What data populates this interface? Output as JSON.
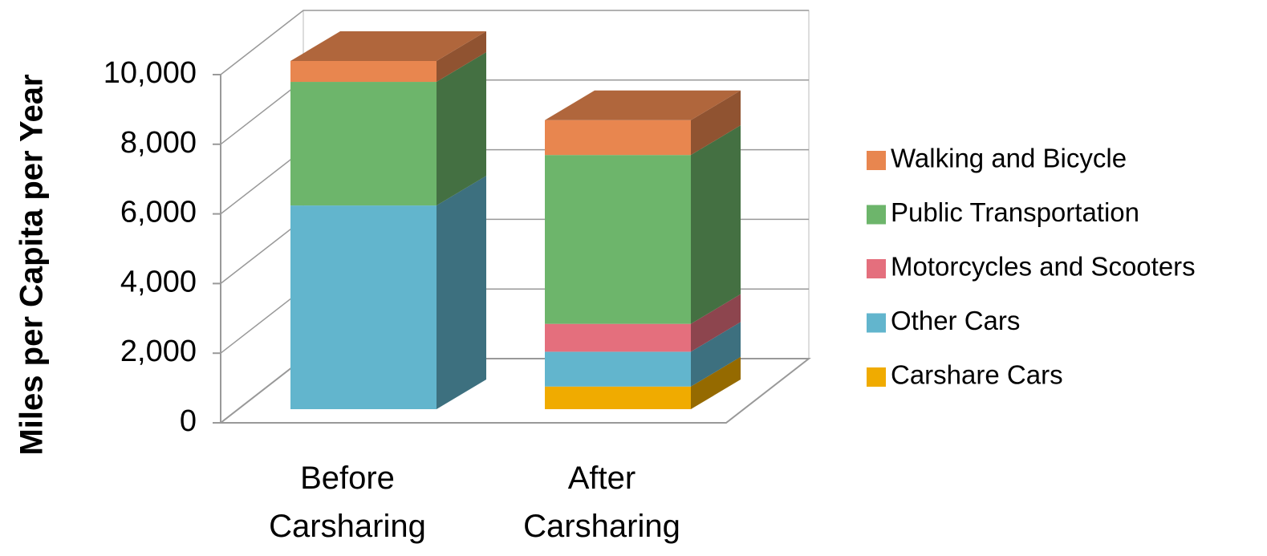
{
  "chart_data": {
    "type": "bar3d_stacked",
    "y_label": "Miles per Capita per Year",
    "categories": [
      "Before Carsharing",
      "After Carsharing"
    ],
    "series": [
      {
        "name": "Carshare Cars",
        "color": "#f0ab00",
        "values": [
          0,
          650
        ]
      },
      {
        "name": "Other Cars",
        "color": "#62b5cd",
        "values": [
          5850,
          1000
        ]
      },
      {
        "name": "Motorcycles and Scooters",
        "color": "#e46f7d",
        "values": [
          0,
          800
        ]
      },
      {
        "name": "Public Transportation",
        "color": "#6db56b",
        "values": [
          3550,
          4850
        ]
      },
      {
        "name": "Walking and Bicycle",
        "color": "#e8864f",
        "values": [
          600,
          1000
        ]
      }
    ],
    "ylim": [
      0,
      10000
    ],
    "yticks": [
      0,
      {
        "value": 2000,
        "label": "2,000"
      },
      {
        "value": 4000,
        "label": "4,000"
      },
      {
        "value": 6000,
        "label": "6,000"
      },
      {
        "value": 8000,
        "label": "8,000"
      },
      {
        "value": 10000,
        "label": "10,000"
      }
    ],
    "grid": true,
    "legend": "right"
  }
}
